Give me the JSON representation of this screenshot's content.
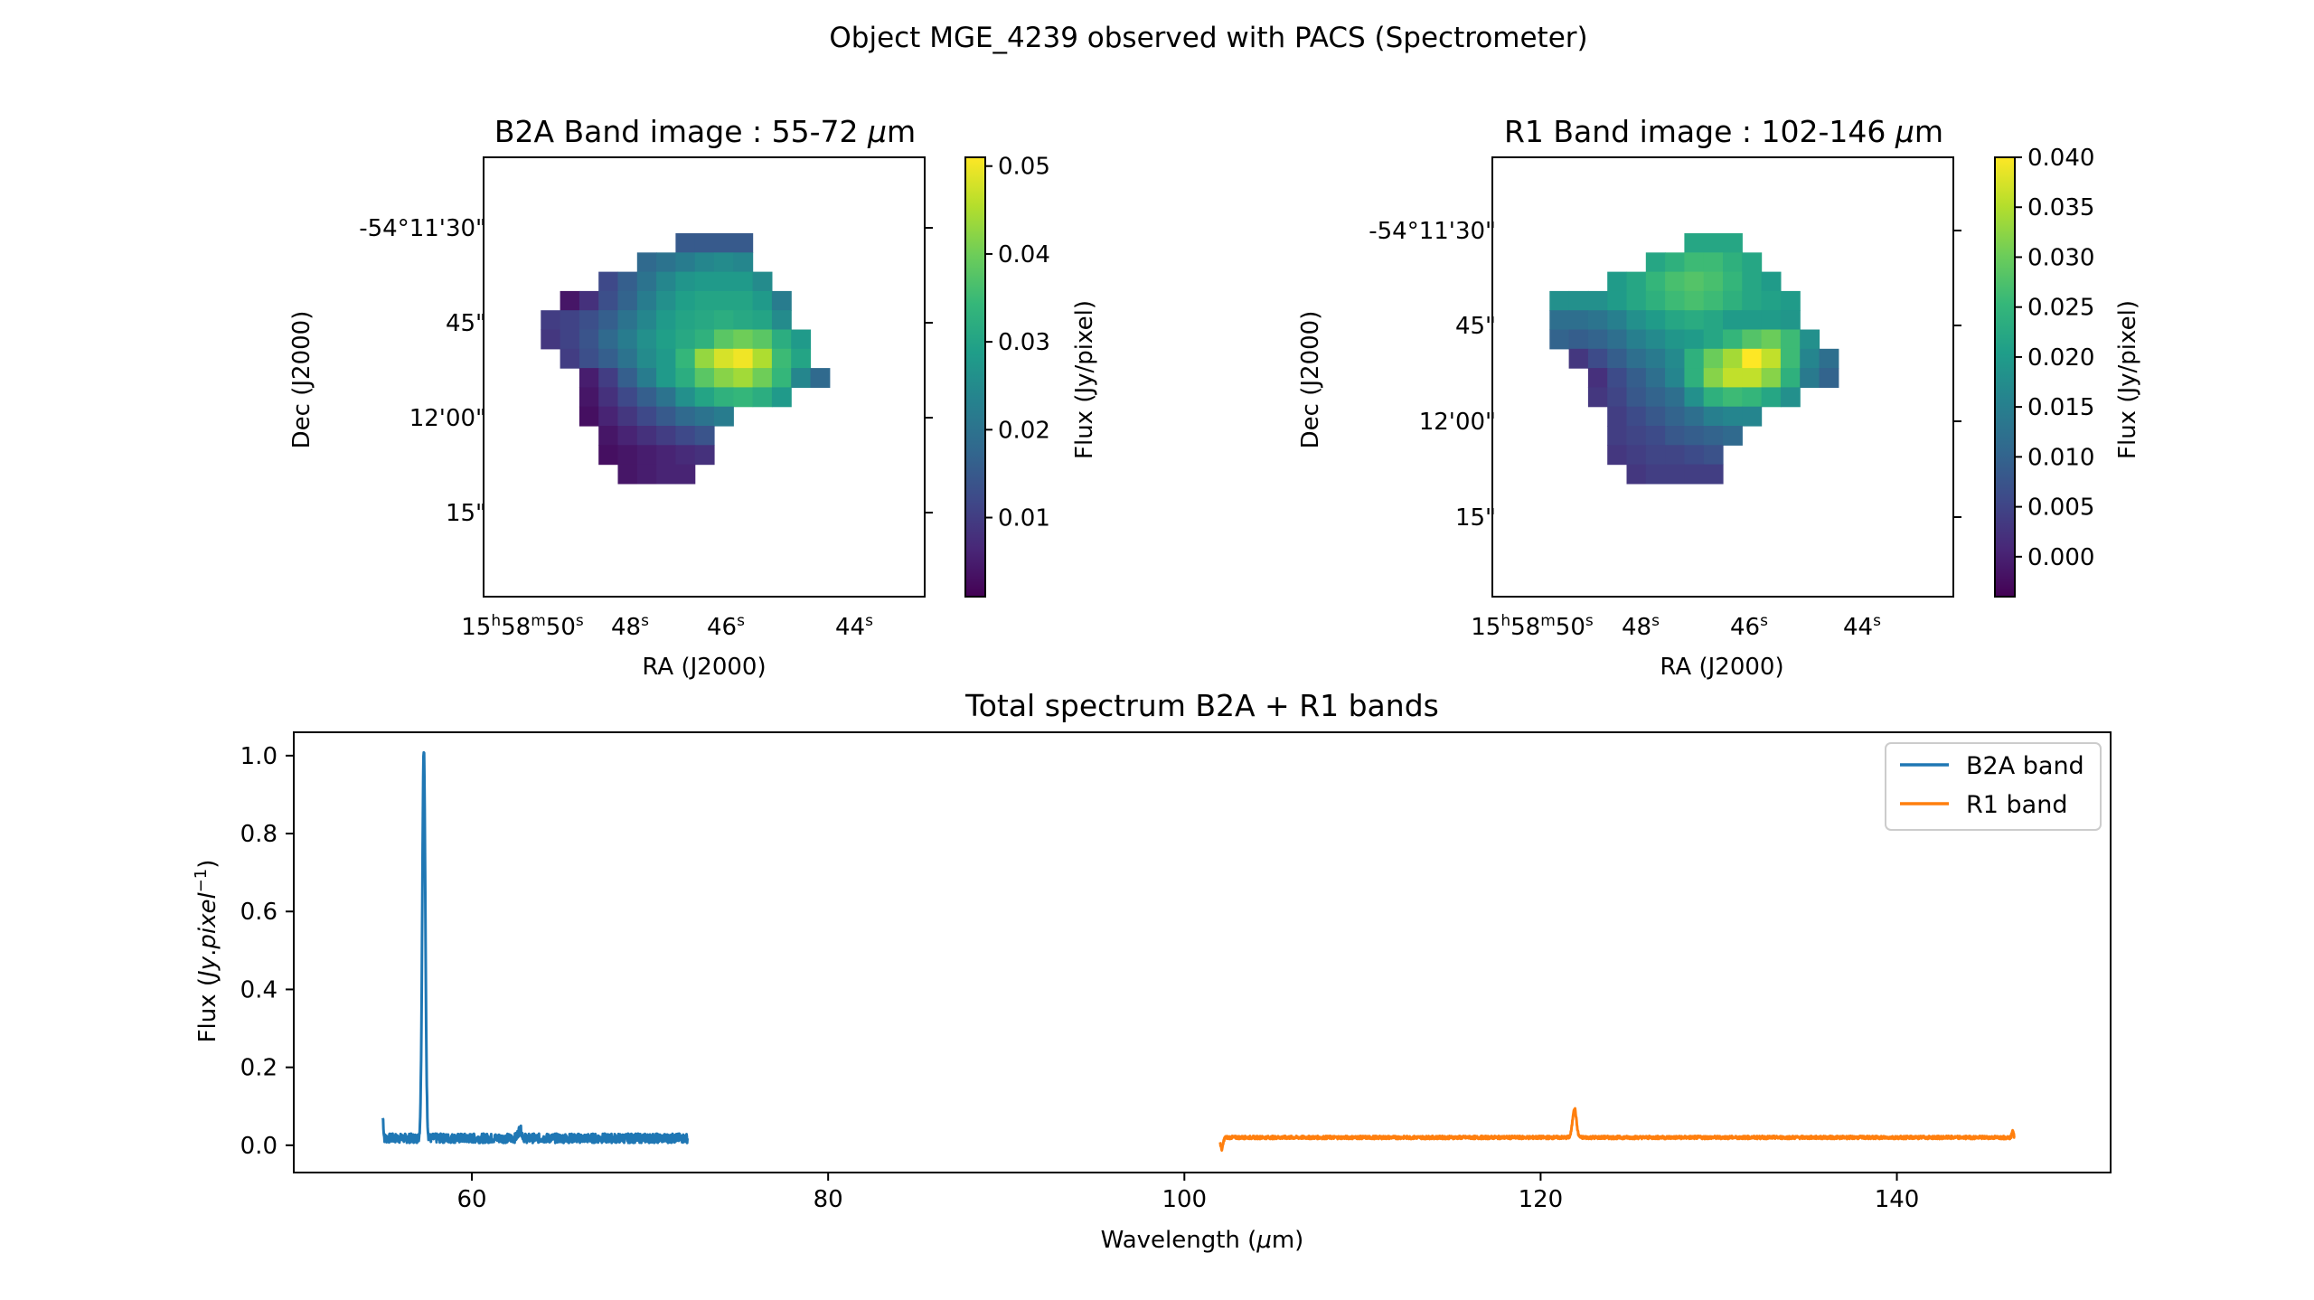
{
  "figure_title": "Object MGE_4239 observed with PACS (Spectrometer)",
  "colors": {
    "b2a": "#1f77b4",
    "r1": "#ff7f0e",
    "axis": "#000000"
  },
  "chart_data": [
    {
      "type": "heatmap",
      "title": "B2A Band image : 55-72 μm",
      "title_parts": [
        "B2A Band image : 55-72 ",
        "μ",
        "m"
      ],
      "xlabel": "RA (J2000)",
      "ylabel": "Dec (J2000)",
      "colorbar_label": "Flux (Jy/pixel)",
      "colormap": "viridis",
      "vmin": 0.001,
      "vmax": 0.051,
      "colorbar_ticks": [
        "0.01",
        "0.02",
        "0.03",
        "0.04",
        "0.05"
      ],
      "x_ticks": [
        {
          "h": "15",
          "m": "58",
          "s": "50"
        },
        {
          "h": "",
          "m": "",
          "s": "48"
        },
        {
          "h": "",
          "m": "",
          "s": "46"
        },
        {
          "h": "",
          "m": "",
          "s": "44"
        }
      ],
      "y_ticks": [
        "-54°11'30\"",
        "45\"",
        "12'00\"",
        "15\""
      ],
      "grid_origin": {
        "col": 4,
        "row": 4
      },
      "pixels": [
        [
          ".",
          ".",
          ".",
          ".",
          ".",
          ".",
          ".",
          ".",
          ".",
          ".",
          ".",
          ".",
          ".",
          "."
        ],
        [
          ".",
          ".",
          ".",
          ".",
          ".",
          ".",
          ".",
          ".",
          ".",
          ".",
          ".",
          ".",
          ".",
          "."
        ],
        [
          ".",
          ".",
          ".",
          ".",
          ".",
          ".",
          ".",
          ".",
          ".",
          ".",
          ".",
          ".",
          ".",
          "."
        ],
        [
          ".",
          ".",
          ".",
          ".",
          ".",
          ".",
          ".",
          ".",
          ".",
          ".",
          ".",
          ".",
          ".",
          "."
        ],
        [
          ".",
          ".",
          ".",
          ".",
          ".",
          ".",
          ".",
          ".",
          ".",
          ".",
          ".",
          ".",
          ".",
          "."
        ],
        [
          ".",
          ".",
          ".",
          ".",
          ".",
          ".",
          ".",
          ".",
          ".",
          ".",
          ".",
          ".",
          ".",
          "."
        ]
      ],
      "values": [
        [
          null,
          null,
          null,
          null,
          null,
          null,
          null,
          null,
          0.015,
          0.015,
          0.015,
          0.015,
          null,
          null,
          null,
          null
        ],
        [
          null,
          null,
          null,
          null,
          null,
          null,
          0.018,
          0.02,
          0.022,
          0.024,
          0.025,
          0.024,
          null,
          null,
          null,
          null
        ],
        [
          null,
          null,
          null,
          null,
          0.012,
          0.016,
          0.02,
          0.024,
          0.027,
          0.028,
          0.028,
          0.028,
          0.025,
          null,
          null,
          null
        ],
        [
          null,
          null,
          0.004,
          0.008,
          0.013,
          0.017,
          0.022,
          0.026,
          0.029,
          0.03,
          0.03,
          0.03,
          0.028,
          0.022,
          null,
          null
        ],
        [
          null,
          0.01,
          0.011,
          0.013,
          0.016,
          0.02,
          0.024,
          0.028,
          0.03,
          0.031,
          0.032,
          0.031,
          0.03,
          0.025,
          null,
          null
        ],
        [
          null,
          0.009,
          0.011,
          0.014,
          0.018,
          0.022,
          0.026,
          0.029,
          0.031,
          0.033,
          0.038,
          0.04,
          0.038,
          0.032,
          0.028,
          null
        ],
        [
          null,
          null,
          0.01,
          0.013,
          0.016,
          0.02,
          0.025,
          0.028,
          0.034,
          0.043,
          0.048,
          0.05,
          0.045,
          0.035,
          0.03,
          null
        ],
        [
          null,
          null,
          null,
          0.005,
          0.01,
          0.016,
          0.022,
          0.028,
          0.032,
          0.038,
          0.042,
          0.044,
          0.04,
          0.034,
          0.024,
          0.018
        ],
        [
          null,
          null,
          null,
          0.004,
          0.008,
          0.012,
          0.016,
          0.02,
          0.026,
          0.03,
          0.033,
          0.034,
          0.032,
          0.028,
          null,
          null
        ],
        [
          null,
          null,
          null,
          0.003,
          0.006,
          0.009,
          0.012,
          0.015,
          0.018,
          0.02,
          0.022,
          null,
          null,
          null,
          null,
          null
        ],
        [
          null,
          null,
          null,
          null,
          0.004,
          0.006,
          0.008,
          0.01,
          0.012,
          0.014,
          null,
          null,
          null,
          null,
          null,
          null
        ],
        [
          null,
          null,
          null,
          null,
          0.003,
          0.004,
          0.005,
          0.006,
          0.007,
          0.008,
          null,
          null,
          null,
          null,
          null,
          null
        ],
        [
          null,
          null,
          null,
          null,
          null,
          0.004,
          0.005,
          0.006,
          0.006,
          null,
          null,
          null,
          null,
          null,
          null,
          null
        ]
      ]
    },
    {
      "type": "heatmap",
      "title": "R1 Band image : 102-146 μm",
      "title_parts": [
        "R1 Band image : 102-146 ",
        "μ",
        "m"
      ],
      "xlabel": "RA (J2000)",
      "ylabel": "Dec (J2000)",
      "colorbar_label": "Flux (Jy/pixel)",
      "colormap": "viridis",
      "vmin": -0.004,
      "vmax": 0.04,
      "colorbar_ticks": [
        "0.000",
        "0.005",
        "0.010",
        "0.015",
        "0.020",
        "0.025",
        "0.030",
        "0.035",
        "0.040"
      ],
      "x_ticks": [
        {
          "h": "15",
          "m": "58",
          "s": "50"
        },
        {
          "h": "",
          "m": "",
          "s": "48"
        },
        {
          "h": "",
          "m": "",
          "s": "46"
        },
        {
          "h": "",
          "m": "",
          "s": "44"
        }
      ],
      "y_ticks": [
        "-54°11'30\"",
        "45\"",
        "12'00\"",
        "15\""
      ],
      "values": [
        [
          null,
          null,
          null,
          null,
          null,
          null,
          null,
          null,
          0.022,
          0.022,
          0.022,
          null,
          null,
          null,
          null,
          null
        ],
        [
          null,
          null,
          null,
          null,
          null,
          null,
          0.022,
          0.024,
          0.026,
          0.026,
          0.024,
          0.022,
          null,
          null,
          null,
          null
        ],
        [
          null,
          null,
          null,
          null,
          0.02,
          0.022,
          0.025,
          0.027,
          0.028,
          0.027,
          0.025,
          0.022,
          0.02,
          null,
          null,
          null
        ],
        [
          null,
          0.018,
          0.018,
          0.018,
          0.02,
          0.022,
          0.024,
          0.026,
          0.027,
          0.026,
          0.024,
          0.022,
          0.021,
          0.02,
          null,
          null
        ],
        [
          null,
          0.012,
          0.012,
          0.013,
          0.015,
          0.018,
          0.02,
          0.022,
          0.023,
          0.022,
          0.02,
          0.02,
          0.02,
          0.019,
          null,
          null
        ],
        [
          null,
          0.01,
          0.009,
          0.01,
          0.012,
          0.015,
          0.017,
          0.019,
          0.02,
          0.022,
          0.025,
          0.028,
          0.03,
          0.026,
          0.018,
          null
        ],
        [
          null,
          null,
          0.003,
          0.006,
          0.009,
          0.012,
          0.014,
          0.017,
          0.024,
          0.03,
          0.034,
          0.04,
          0.036,
          0.026,
          0.016,
          0.012
        ],
        [
          null,
          null,
          null,
          0.002,
          0.006,
          0.009,
          0.012,
          0.016,
          0.024,
          0.032,
          0.036,
          0.036,
          0.032,
          0.024,
          0.014,
          0.01
        ],
        [
          null,
          null,
          null,
          0.003,
          0.005,
          0.008,
          0.01,
          0.012,
          0.018,
          0.024,
          0.026,
          0.025,
          0.022,
          0.018,
          null,
          null
        ],
        [
          null,
          null,
          null,
          null,
          0.004,
          0.006,
          0.008,
          0.01,
          0.012,
          0.015,
          0.016,
          0.016,
          null,
          null,
          null,
          null
        ],
        [
          null,
          null,
          null,
          null,
          0.004,
          0.005,
          0.006,
          0.008,
          0.009,
          0.01,
          0.011,
          null,
          null,
          null,
          null,
          null
        ],
        [
          null,
          null,
          null,
          null,
          0.003,
          0.004,
          0.005,
          0.005,
          0.006,
          0.007,
          null,
          null,
          null,
          null,
          null,
          null
        ],
        [
          null,
          null,
          null,
          null,
          null,
          0.003,
          0.004,
          0.004,
          0.004,
          0.004,
          null,
          null,
          null,
          null,
          null,
          null
        ]
      ]
    },
    {
      "type": "line",
      "title": "Total spectrum B2A + R1 bands",
      "xlabel_parts": [
        "Wavelength (",
        "μ",
        "m)"
      ],
      "xlabel": "Wavelength (μm)",
      "ylabel": "Flux (Jy.pixel⁻¹)",
      "xlim": [
        50,
        152
      ],
      "ylim": [
        -0.07,
        1.06
      ],
      "x_ticks": [
        60,
        80,
        100,
        120,
        140
      ],
      "y_ticks": [
        "0.0",
        "0.2",
        "0.4",
        "0.6",
        "0.8",
        "1.0"
      ],
      "y_tick_values": [
        0,
        0.2,
        0.4,
        0.6,
        0.8,
        1.0
      ],
      "legend_position": "top-right",
      "series": [
        {
          "name": "B2A band",
          "color": "#1f77b4",
          "x_range": [
            55.0,
            72.1
          ],
          "baseline": 0.018,
          "noise": 0.012,
          "features": [
            {
              "x": 55.0,
              "y": 0.07,
              "width": 0.05
            },
            {
              "x": 57.3,
              "y": 1.02,
              "width": 0.12
            },
            {
              "x": 62.7,
              "y": 0.04,
              "width": 0.15
            }
          ]
        },
        {
          "name": "R1 band",
          "color": "#ff7f0e",
          "x_range": [
            102.0,
            146.6
          ],
          "baseline": 0.02,
          "noise": 0.004,
          "features": [
            {
              "x": 102.1,
              "y": -0.01,
              "width": 0.1
            },
            {
              "x": 121.9,
              "y": 0.095,
              "width": 0.15
            },
            {
              "x": 146.5,
              "y": 0.04,
              "width": 0.06
            }
          ]
        }
      ]
    }
  ]
}
